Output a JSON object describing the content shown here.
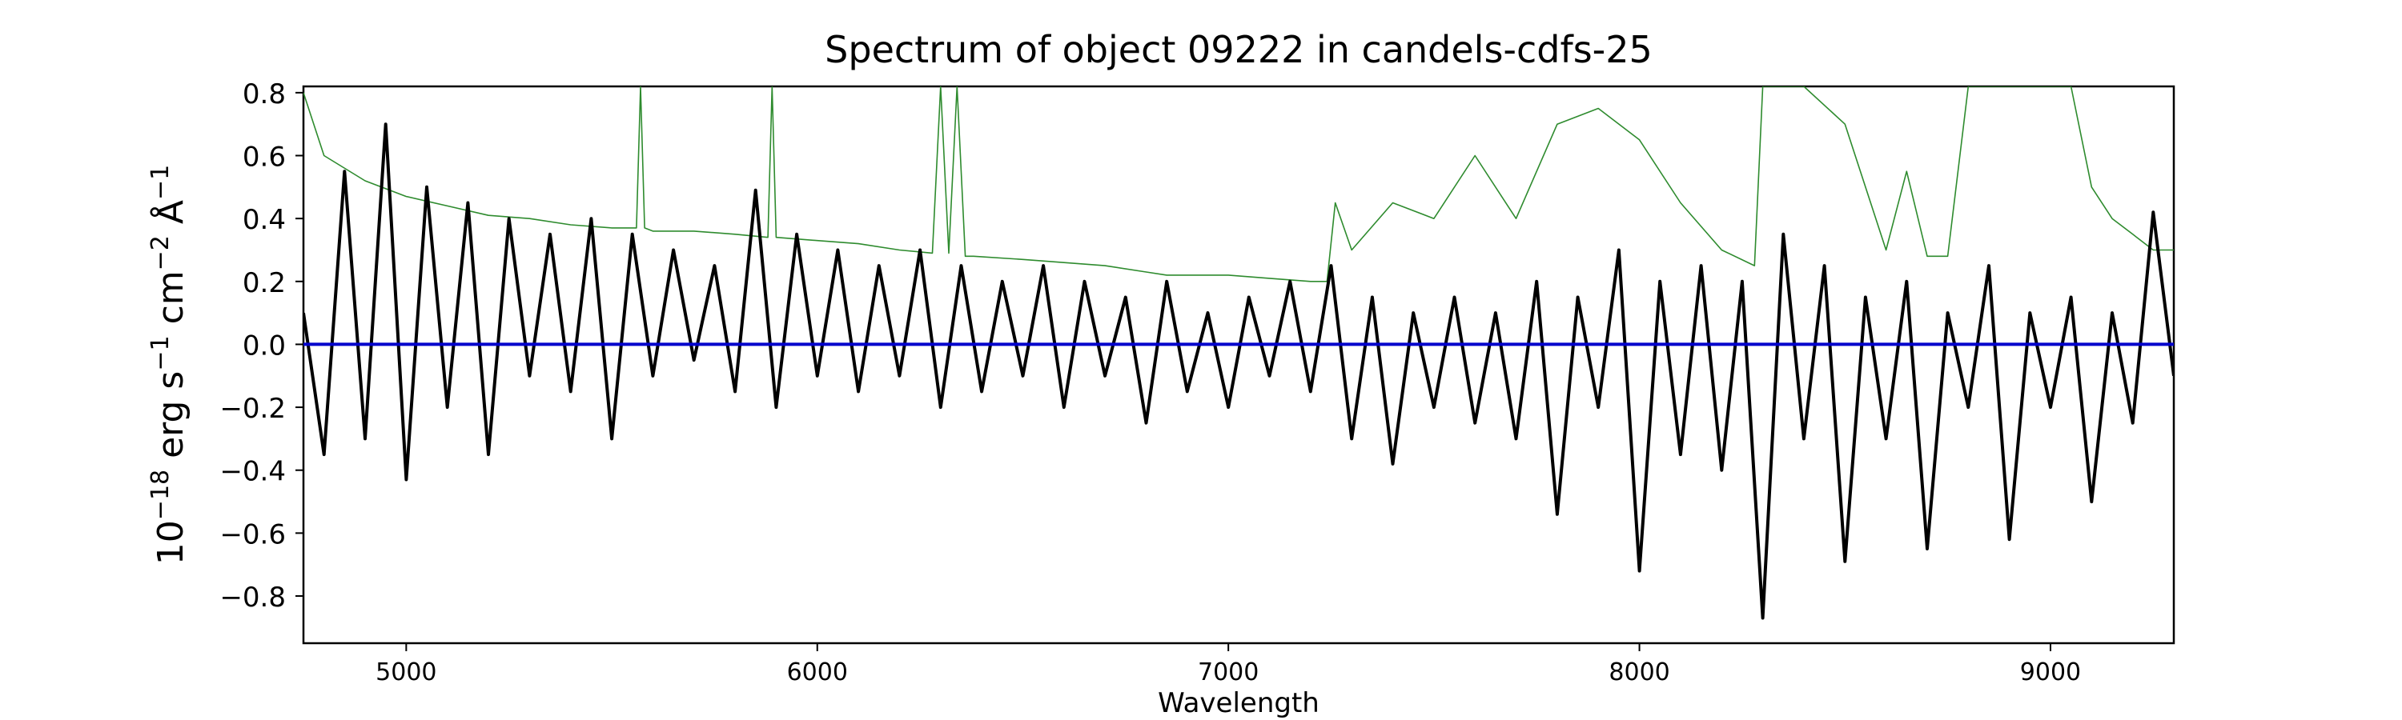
{
  "chart_data": {
    "type": "line",
    "title": "Spectrum of object 09222 in candels-cdfs-25",
    "xlabel": "Wavelength",
    "ylabel_parts": [
      "10",
      "−18",
      " erg s",
      "−1",
      " cm",
      "−2",
      " Å",
      "−1"
    ],
    "xlim": [
      4750,
      9300
    ],
    "ylim": [
      -0.95,
      0.82
    ],
    "xticks": [
      5000,
      6000,
      7000,
      8000,
      9000
    ],
    "yticks": [
      -0.8,
      -0.6,
      -0.4,
      -0.2,
      0.0,
      0.2,
      0.4,
      0.6,
      0.8
    ],
    "ytick_labels": [
      "−0.8",
      "−0.6",
      "−0.4",
      "−0.2",
      "0.0",
      "0.2",
      "0.4",
      "0.6",
      "0.8"
    ],
    "grid": false,
    "series": [
      {
        "role": "flux",
        "color": "#000000",
        "x": [
          4750,
          4800,
          4850,
          4900,
          4950,
          5000,
          5050,
          5100,
          5150,
          5200,
          5250,
          5300,
          5350,
          5400,
          5450,
          5500,
          5550,
          5600,
          5650,
          5700,
          5750,
          5800,
          5850,
          5900,
          5950,
          6000,
          6050,
          6100,
          6150,
          6200,
          6250,
          6300,
          6350,
          6400,
          6450,
          6500,
          6550,
          6600,
          6650,
          6700,
          6750,
          6800,
          6850,
          6900,
          6950,
          7000,
          7050,
          7100,
          7150,
          7200,
          7250,
          7300,
          7350,
          7400,
          7450,
          7500,
          7550,
          7600,
          7650,
          7700,
          7750,
          7800,
          7850,
          7900,
          7950,
          8000,
          8050,
          8100,
          8150,
          8200,
          8250,
          8300,
          8350,
          8400,
          8450,
          8500,
          8550,
          8600,
          8650,
          8700,
          8750,
          8800,
          8850,
          8900,
          8950,
          9000,
          9050,
          9100,
          9150,
          9200,
          9250,
          9300
        ],
        "y": [
          0.1,
          -0.35,
          0.55,
          -0.3,
          0.7,
          -0.43,
          0.5,
          -0.2,
          0.45,
          -0.35,
          0.4,
          -0.1,
          0.35,
          -0.15,
          0.4,
          -0.3,
          0.35,
          -0.1,
          0.3,
          -0.05,
          0.25,
          -0.15,
          0.49,
          -0.2,
          0.35,
          -0.1,
          0.3,
          -0.15,
          0.25,
          -0.1,
          0.3,
          -0.2,
          0.25,
          -0.15,
          0.2,
          -0.1,
          0.25,
          -0.2,
          0.2,
          -0.1,
          0.15,
          -0.25,
          0.2,
          -0.15,
          0.1,
          -0.2,
          0.15,
          -0.1,
          0.2,
          -0.15,
          0.25,
          -0.3,
          0.15,
          -0.38,
          0.1,
          -0.2,
          0.15,
          -0.25,
          0.1,
          -0.3,
          0.2,
          -0.54,
          0.15,
          -0.2,
          0.3,
          -0.72,
          0.2,
          -0.35,
          0.25,
          -0.4,
          0.2,
          -0.87,
          0.35,
          -0.3,
          0.25,
          -0.69,
          0.15,
          -0.3,
          0.2,
          -0.65,
          0.1,
          -0.2,
          0.25,
          -0.62,
          0.1,
          -0.2,
          0.15,
          -0.5,
          0.1,
          -0.25,
          0.42,
          -0.1
        ]
      },
      {
        "role": "error",
        "color": "#2e8b2e",
        "x": [
          4750,
          4800,
          4900,
          5000,
          5100,
          5200,
          5300,
          5400,
          5500,
          5560,
          5570,
          5580,
          5600,
          5700,
          5800,
          5880,
          5890,
          5900,
          6000,
          6100,
          6200,
          6280,
          6300,
          6320,
          6340,
          6360,
          6380,
          6500,
          6600,
          6700,
          6800,
          6850,
          6900,
          7000,
          7100,
          7200,
          7240,
          7260,
          7300,
          7400,
          7500,
          7600,
          7700,
          7800,
          7900,
          8000,
          8100,
          8200,
          8280,
          8300,
          8350,
          8400,
          8500,
          8600,
          8650,
          8700,
          8750,
          8800,
          8850,
          8900,
          8950,
          9000,
          9050,
          9100,
          9150,
          9200,
          9250,
          9300
        ],
        "y": [
          0.8,
          0.6,
          0.52,
          0.47,
          0.44,
          0.41,
          0.4,
          0.38,
          0.37,
          0.37,
          0.82,
          0.37,
          0.36,
          0.36,
          0.35,
          0.34,
          0.82,
          0.34,
          0.33,
          0.32,
          0.3,
          0.29,
          0.82,
          0.29,
          0.82,
          0.28,
          0.28,
          0.27,
          0.26,
          0.25,
          0.23,
          0.22,
          0.22,
          0.22,
          0.21,
          0.2,
          0.2,
          0.45,
          0.3,
          0.45,
          0.4,
          0.6,
          0.4,
          0.7,
          0.75,
          0.65,
          0.45,
          0.3,
          0.25,
          0.82,
          0.82,
          0.82,
          0.7,
          0.3,
          0.55,
          0.28,
          0.28,
          0.82,
          0.82,
          0.82,
          0.82,
          0.82,
          0.82,
          0.5,
          0.4,
          0.35,
          0.3,
          0.3
        ]
      },
      {
        "role": "zero",
        "color": "#0000cc",
        "x": [
          4750,
          9300
        ],
        "y": [
          0.0,
          0.0
        ]
      }
    ]
  }
}
